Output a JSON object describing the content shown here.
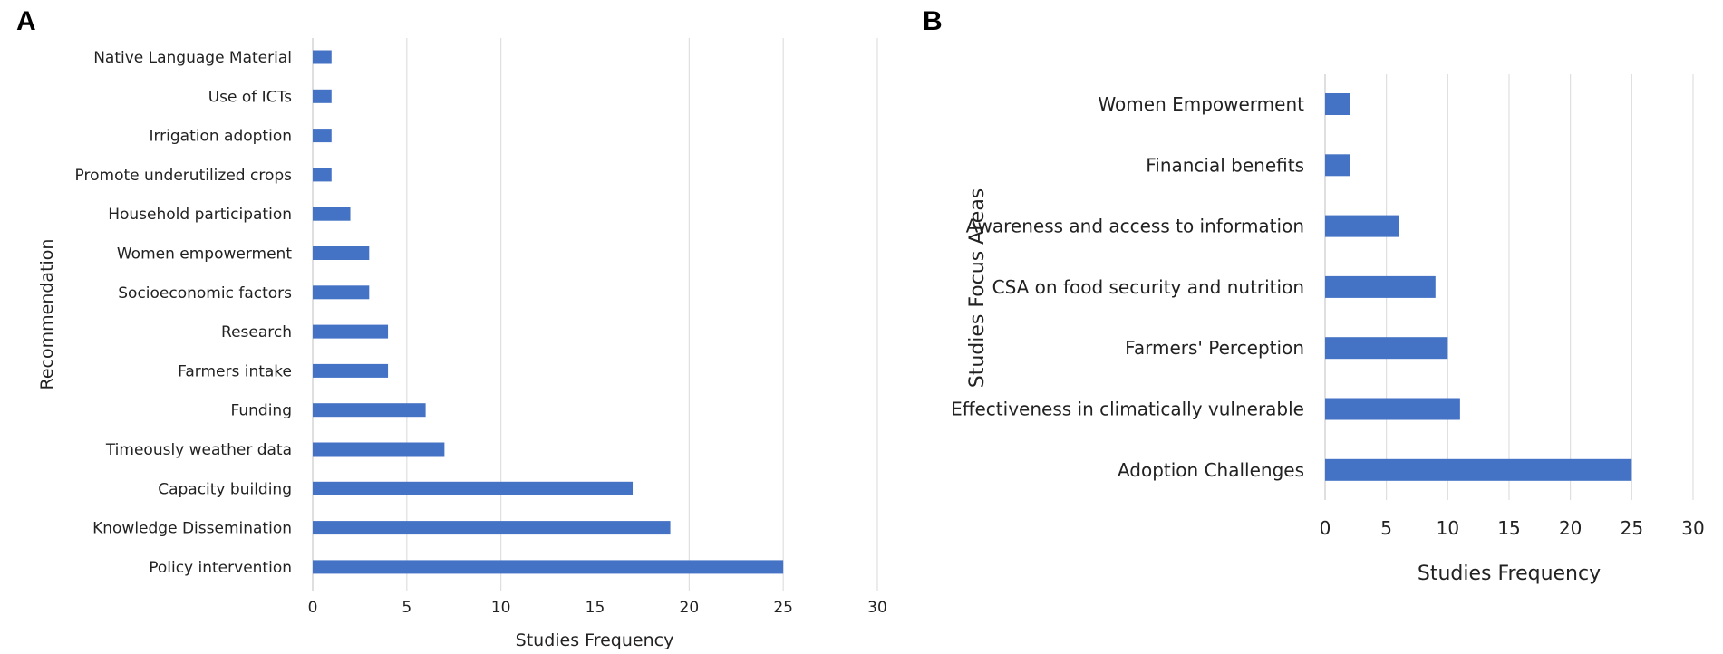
{
  "chart_data": [
    {
      "type": "bar",
      "orientation": "horizontal",
      "panel": "A",
      "categories": [
        "Native Language Material",
        "Use of ICTs",
        "Irrigation adoption",
        "Promote underutilized crops",
        "Household participation",
        "Women empowerment",
        "Socioeconomic factors",
        "Research",
        "Farmers intake",
        "Funding",
        "Timeously weather data",
        "Capacity building",
        "Knowledge Dissemination",
        "Policy intervention"
      ],
      "values": [
        1,
        1,
        1,
        1,
        2,
        3,
        3,
        4,
        4,
        6,
        7,
        17,
        19,
        25
      ],
      "xlabel": "Studies Frequency",
      "ylabel": "Recommendation",
      "xlim": [
        0,
        30
      ],
      "xticks": [
        "0",
        "5",
        "10",
        "15",
        "20",
        "25",
        "30"
      ],
      "grid": true,
      "color": "#4472c4"
    },
    {
      "type": "bar",
      "orientation": "horizontal",
      "panel": "B",
      "categories": [
        "Women Empowerment",
        "Financial benefits",
        "Awareness and access to information",
        "CSA on food security and nutrition",
        "Farmers' Perception",
        "Effectiveness in climatically vulnerable",
        "Adoption Challenges"
      ],
      "values": [
        2,
        2,
        6,
        9,
        10,
        11,
        25
      ],
      "xlabel": "Studies Frequency",
      "ylabel": "Studies Focus Areas",
      "xlim": [
        0,
        30
      ],
      "xticks": [
        "0",
        "5",
        "10",
        "15",
        "20",
        "25",
        "30"
      ],
      "grid": true,
      "color": "#4472c4"
    }
  ]
}
